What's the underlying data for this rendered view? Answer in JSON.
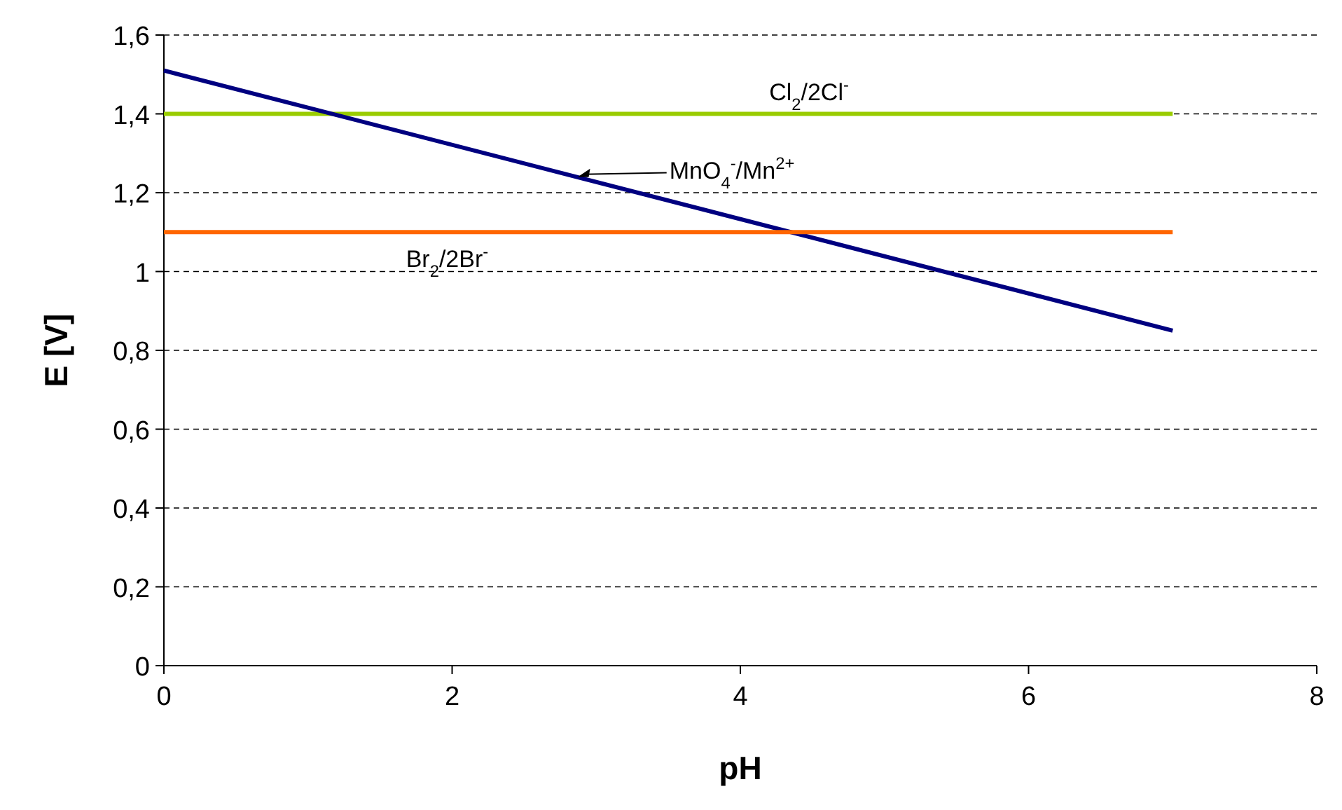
{
  "chart_data": {
    "type": "line",
    "xlabel": "pH",
    "ylabel": "E [V]",
    "x": [
      0,
      7
    ],
    "xlim": [
      0,
      8
    ],
    "xticks": [
      0,
      2,
      4,
      6,
      8
    ],
    "ylim": [
      0,
      1.6
    ],
    "yticks": [
      0,
      {
        "value": 0.2,
        "label": "0,2"
      },
      {
        "value": 0.4,
        "label": "0,4"
      },
      {
        "value": 0.6,
        "label": "0,6"
      },
      {
        "value": 0.8,
        "label": "0,8"
      },
      1,
      {
        "value": 1.2,
        "label": "1,2"
      },
      {
        "value": 1.4,
        "label": "1,4"
      },
      {
        "value": 1.6,
        "label": "1,6"
      }
    ],
    "grid": "y",
    "marker": "none",
    "line_style": "solid",
    "series": [
      {
        "name": "Cl$_{2}$/2Cl$^{-}$",
        "color": "#99cc00",
        "values": [
          1.4,
          1.4
        ]
      },
      {
        "name": "MnO$_{4}$$^{-}$/Mn$^{2+}$",
        "color": "#000080",
        "values": [
          1.51,
          0.85
        ]
      },
      {
        "name": "Br$_{2}$/2Br$^{-}$",
        "color": "#ff6600",
        "values": [
          1.1,
          1.1
        ]
      }
    ]
  }
}
